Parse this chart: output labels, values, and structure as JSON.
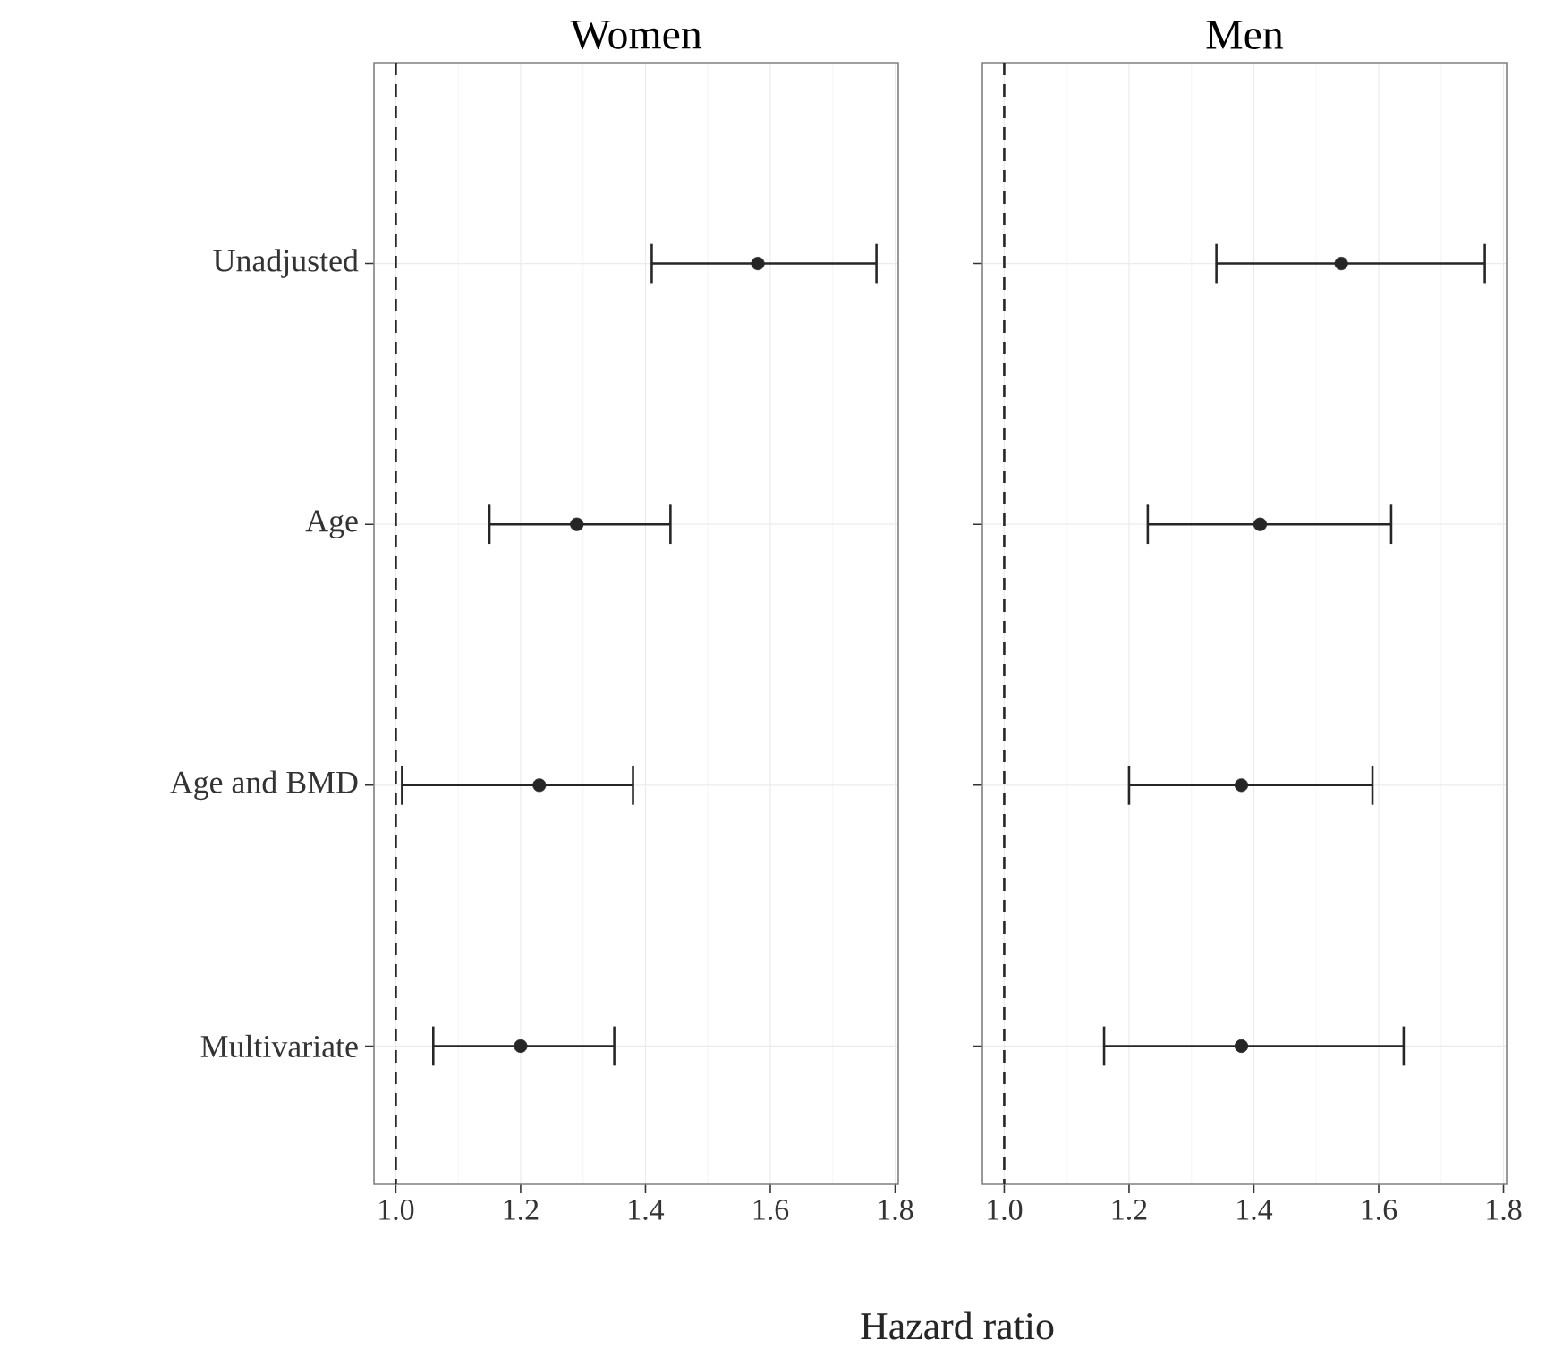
{
  "chart_data": [
    {
      "type": "scatter",
      "orientation": "horizontal",
      "title": "Women",
      "xlabel": "Hazard ratio",
      "categories": [
        "Unadjusted",
        "Age",
        "Age and BMD",
        "Multivariate"
      ],
      "marker": "circle",
      "grid": true,
      "xlim": [
        0.965,
        1.805
      ],
      "xticks": [
        {
          "value": 1.0,
          "label": "1.0"
        },
        {
          "value": 1.2,
          "label": "1.2"
        },
        {
          "value": 1.4,
          "label": "1.4"
        },
        {
          "value": 1.6,
          "label": "1.6"
        },
        {
          "value": 1.8,
          "label": "1.8"
        }
      ],
      "ref_lines": [
        {
          "axis": "x",
          "value": 1.0,
          "line_style": "dashed",
          "color": "#262626"
        }
      ],
      "series": [
        {
          "color": "#262626",
          "values": [
            1.58,
            1.29,
            1.23,
            1.2
          ],
          "errors": [
            [
              1.41,
              1.77
            ],
            [
              1.15,
              1.44
            ],
            [
              1.01,
              1.38
            ],
            [
              1.06,
              1.35
            ]
          ]
        }
      ]
    },
    {
      "type": "scatter",
      "orientation": "horizontal",
      "title": "Men",
      "categories": [
        null,
        null,
        null,
        null
      ],
      "marker": "circle",
      "grid": true,
      "tick_labels": "x",
      "xlim": [
        0.965,
        1.805
      ],
      "xticks": [
        {
          "value": 1.0,
          "label": "1.0"
        },
        {
          "value": 1.2,
          "label": "1.2"
        },
        {
          "value": 1.4,
          "label": "1.4"
        },
        {
          "value": 1.6,
          "label": "1.6"
        },
        {
          "value": 1.8,
          "label": "1.8"
        }
      ],
      "ref_lines": [
        {
          "axis": "x",
          "value": 1.0,
          "line_style": "dashed",
          "color": "#262626"
        }
      ],
      "series": [
        {
          "color": "#262626",
          "values": [
            1.54,
            1.41,
            1.38,
            1.38
          ],
          "errors": [
            [
              1.34,
              1.77
            ],
            [
              1.23,
              1.62
            ],
            [
              1.2,
              1.59
            ],
            [
              1.16,
              1.64
            ]
          ]
        }
      ]
    }
  ]
}
